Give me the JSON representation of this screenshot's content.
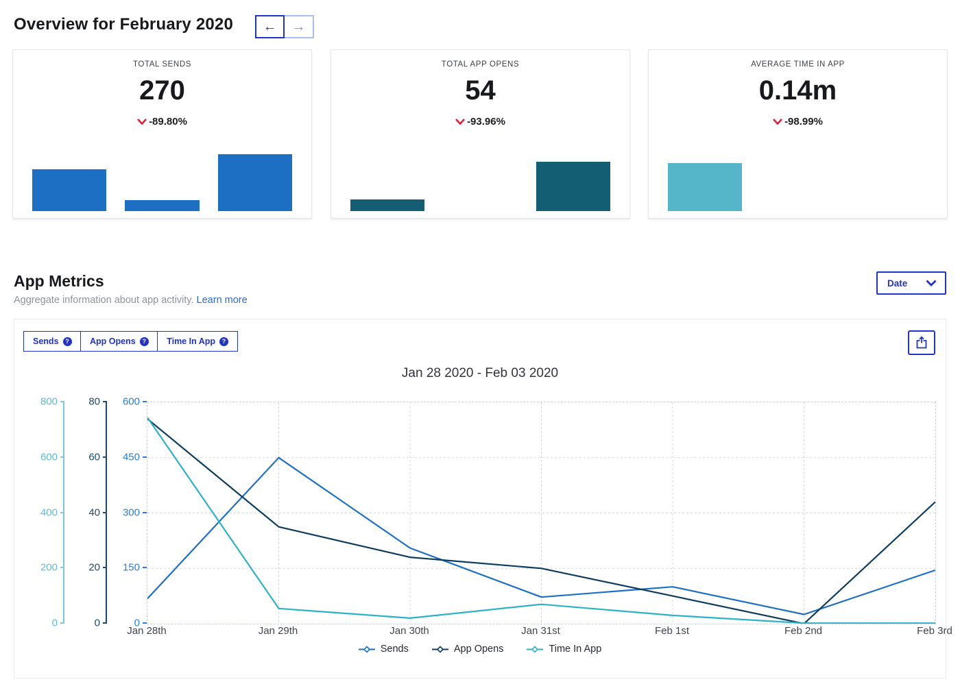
{
  "header": {
    "title": "Overview for February 2020",
    "prev_glyph": "←",
    "next_glyph": "→"
  },
  "cards": [
    {
      "label": "TOTAL SENDS",
      "value": "270",
      "delta": "-89.80%",
      "delta_direction": "down",
      "color": "#1c6fc2",
      "bars": [
        66,
        17,
        90
      ]
    },
    {
      "label": "TOTAL APP OPENS",
      "value": "54",
      "delta": "-93.96%",
      "delta_direction": "down",
      "color": "#135e73",
      "bars": [
        18,
        0,
        78
      ]
    },
    {
      "label": "AVERAGE TIME IN APP",
      "value": "0.14m",
      "delta": "-98.99%",
      "delta_direction": "down",
      "color": "#54b6c8",
      "bars": [
        76,
        0,
        0
      ]
    }
  ],
  "section": {
    "title": "App Metrics",
    "subtitle": "Aggregate information about app activity.",
    "link": "Learn more",
    "date_button": "Date"
  },
  "panel": {
    "tabs": [
      "Sends",
      "App Opens",
      "Time In App"
    ],
    "help_glyph": "?"
  },
  "colors": {
    "accent": "#2132c8",
    "delta_red": "#e11e3c",
    "grid": "#d2d8df"
  },
  "chart_data": {
    "type": "line",
    "title": "Jan 28 2020 - Feb 03 2020",
    "x": [
      "Jan 28th",
      "Jan 29th",
      "Jan 30th",
      "Jan 31st",
      "Feb 1st",
      "Feb 2nd",
      "Feb 3rd"
    ],
    "series": [
      {
        "name": "Sends",
        "color": "#1c6fc4",
        "axis_max": 600,
        "values": [
          68,
          450,
          205,
          72,
          100,
          25,
          145
        ]
      },
      {
        "name": "App Opens",
        "color": "#0d3c5f",
        "axis_max": 80,
        "values": [
          74,
          35,
          24,
          20,
          10,
          0,
          44
        ]
      },
      {
        "name": "Time In App",
        "color": "#2cb1c7",
        "axis_max": 800,
        "values": [
          745,
          55,
          20,
          70,
          30,
          2,
          2
        ]
      }
    ],
    "axes": [
      {
        "series": "Time In App",
        "label_color": "#5fbdd1",
        "line_color": "#7cc8d8",
        "max": 800,
        "ticks": [
          "800",
          "600",
          "400",
          "200",
          "0"
        ]
      },
      {
        "series": "App Opens",
        "label_color": "#1b4a68",
        "line_color": "#1b4a68",
        "max": 80,
        "ticks": [
          "80",
          "60",
          "40",
          "20",
          "0"
        ]
      },
      {
        "series": "Sends",
        "label_color": "#2e7cd1",
        "line_color": "#2e7cd1",
        "max": 600,
        "ticks": [
          "600",
          "450",
          "300",
          "150",
          "0"
        ]
      }
    ],
    "grid": true,
    "legend_position": "bottom"
  }
}
